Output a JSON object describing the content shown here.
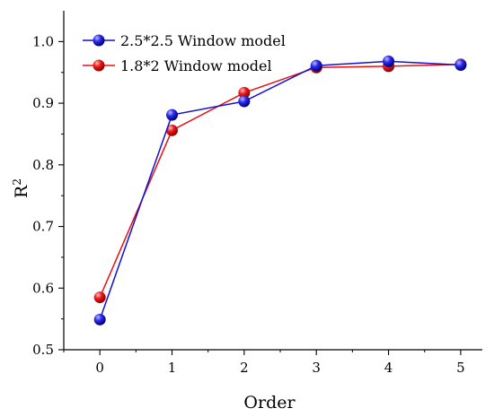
{
  "chart_data": {
    "type": "line",
    "x": [
      0,
      1,
      2,
      3,
      4,
      5
    ],
    "xlabel": "Order",
    "ylabel": "R",
    "ylabel_superscript": "2",
    "xlim": [
      -0.5,
      5.3
    ],
    "ylim": [
      0.5,
      1.05
    ],
    "x_ticks": [
      "0",
      "1",
      "2",
      "3",
      "4",
      "5"
    ],
    "y_ticks": [
      "0.5",
      "0.6",
      "0.7",
      "0.8",
      "0.9",
      "1.0"
    ],
    "grid": false,
    "legend_position": "top-left",
    "series": [
      {
        "name": "2.5*2.5 Window model",
        "color": "#1010d0",
        "values": [
          0.549,
          0.881,
          0.903,
          0.961,
          0.968,
          0.962
        ]
      },
      {
        "name": "1.8*2 Window model",
        "color": "#e81010",
        "values": [
          0.585,
          0.856,
          0.917,
          0.958,
          0.96,
          0.963
        ]
      }
    ]
  }
}
